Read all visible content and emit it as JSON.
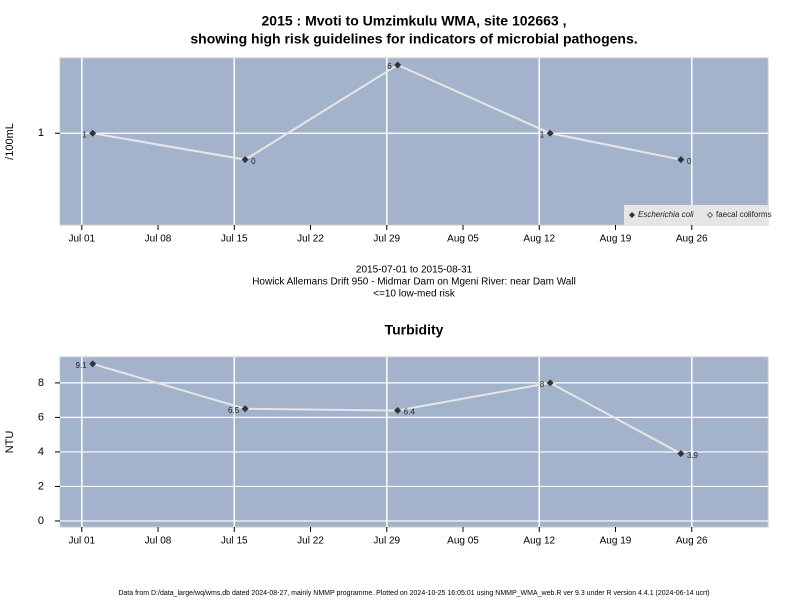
{
  "chart_data": [
    {
      "type": "line",
      "title": "2015 : Mvoti to Umzimkulu WMA, site 102663 ,",
      "subtitle": "showing high risk guidelines for indicators of microbial pathogens.",
      "ylabel": "/100mL",
      "log_scale": true,
      "grid": true,
      "legend": "bottom-right",
      "x": [
        "Jul 02",
        "Jul 16",
        "Jul 30",
        "Aug 13",
        "Aug 25"
      ],
      "xlim": [
        "Jun 29",
        "Sep 02"
      ],
      "xticks": [
        "Jul 01",
        "Jul 08",
        "Jul 15",
        "Jul 22",
        "Jul 29",
        "Aug 05",
        "Aug 12",
        "Aug 19",
        "Aug 26"
      ],
      "ylim": [
        0.09,
        7.2
      ],
      "yticks": [
        1
      ],
      "series": [
        {
          "name": "Escherichia coli",
          "color": "#333333",
          "values": [
            1,
            0.5,
            6,
            1,
            0.5
          ],
          "value_labels": [
            "1",
            "0",
            "6",
            "1",
            "0"
          ]
        },
        {
          "name": "faecal coliforms",
          "color": "#333333",
          "values": [
            null,
            null,
            null,
            null,
            null
          ]
        }
      ],
      "annotations": [
        "2015-07-01 to 2015-08-31",
        "Howick Allemans Drift 950 - Midmar Dam on Mgeni River: near Dam Wall",
        "<=10 low-med risk"
      ]
    },
    {
      "type": "line",
      "title": "Turbidity",
      "ylabel": "NTU",
      "grid": true,
      "x": [
        "Jul 02",
        "Jul 16",
        "Jul 30",
        "Aug 13",
        "Aug 25"
      ],
      "xlim": [
        "Jun 29",
        "Sep 02"
      ],
      "xticks": [
        "Jul 01",
        "Jul 08",
        "Jul 15",
        "Jul 22",
        "Jul 29",
        "Aug 05",
        "Aug 12",
        "Aug 19",
        "Aug 26"
      ],
      "ylim": [
        -0.35,
        9.5
      ],
      "yticks": [
        0,
        2,
        4,
        6,
        8
      ],
      "series": [
        {
          "name": "Turbidity",
          "color": "#333333",
          "values": [
            9.1,
            6.5,
            6.4,
            8,
            3.9
          ]
        }
      ]
    }
  ],
  "footer": "Data from D:/data_large/wq/wms.db dated 2024-08-27, mainly NMMP programme. Plotted on 2024-10-25 16:05:01 using NMMP_WMA_web.R ver 9.3 under R version 4.4.1 (2024-06-14 ucrt)"
}
